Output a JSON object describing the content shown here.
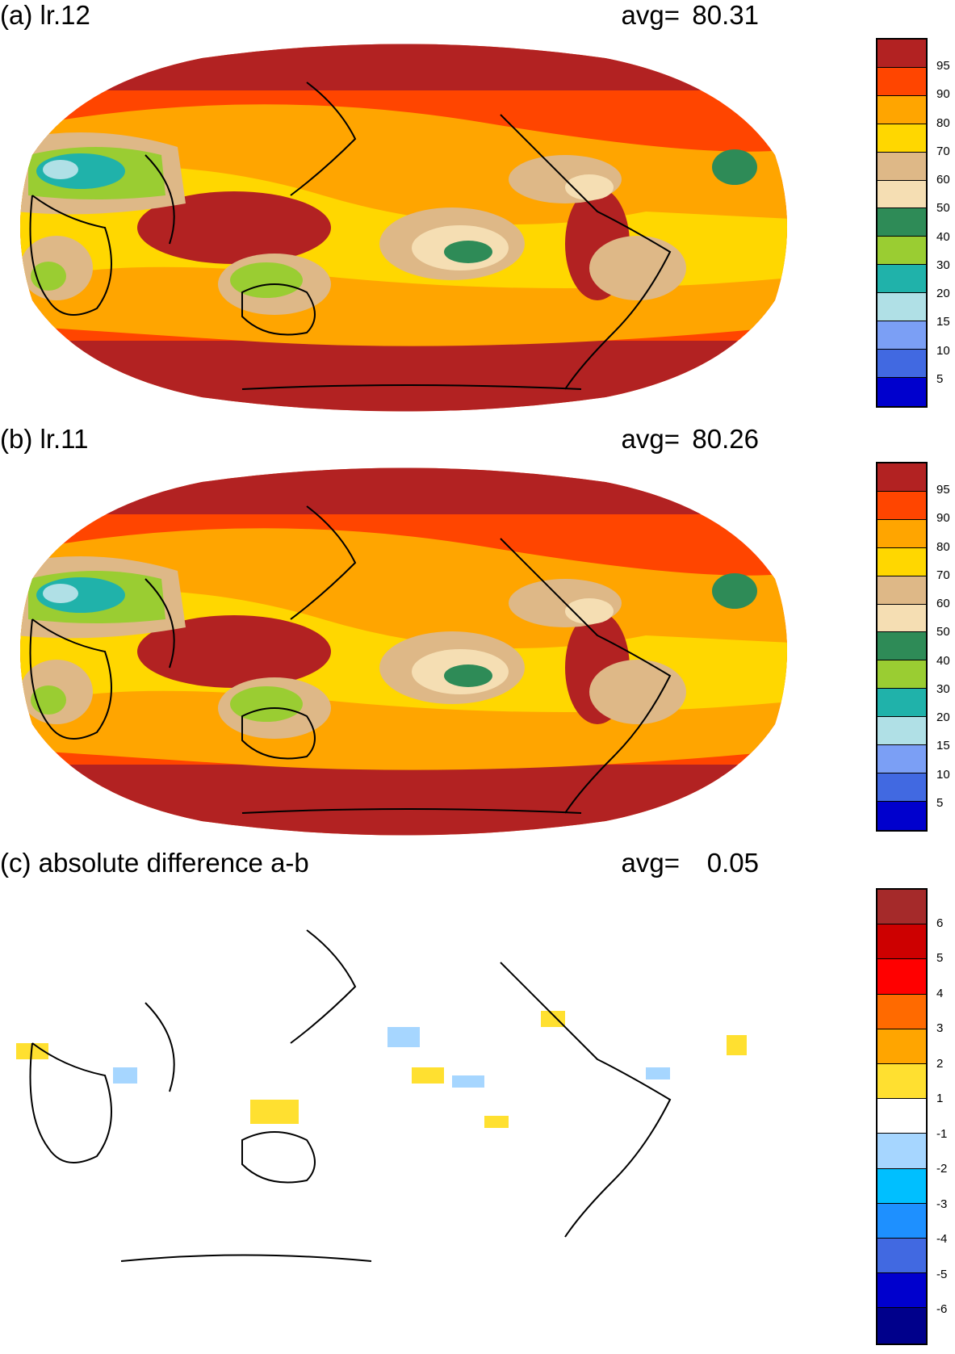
{
  "panels": [
    {
      "id": "a",
      "title": "(a) lr.12",
      "avg_label": "avg=",
      "avg_value": "80.31",
      "field": "cloud"
    },
    {
      "id": "b",
      "title": "(b) lr.11",
      "avg_label": "avg=",
      "avg_value": "80.26",
      "field": "cloud"
    },
    {
      "id": "c",
      "title": "(c) absolute difference a-b",
      "avg_label": "avg=",
      "avg_value": "0.05",
      "field": "difference"
    }
  ],
  "colorbars": {
    "cloud": {
      "colors": [
        "#b22222",
        "#ff4500",
        "#ffa500",
        "#ffd700",
        "#deb887",
        "#f5deb3",
        "#2e8b57",
        "#9acd32",
        "#20b2aa",
        "#b0e0e6",
        "#7b9ff5",
        "#4169e1",
        "#0000cd"
      ],
      "tick_labels": [
        "95",
        "90",
        "80",
        "70",
        "60",
        "50",
        "40",
        "30",
        "20",
        "15",
        "10",
        "5"
      ]
    },
    "difference": {
      "colors": [
        "#a52a2a",
        "#cd0000",
        "#ff0000",
        "#ff6a00",
        "#ffa500",
        "#ffe030",
        "#ffffff",
        "#a6d6ff",
        "#00bfff",
        "#1e90ff",
        "#4169e1",
        "#0000cd",
        "#00008b"
      ],
      "tick_labels": [
        "6",
        "5",
        "4",
        "3",
        "2",
        "1",
        "-1",
        "-2",
        "-3",
        "-4",
        "-5",
        "-6"
      ]
    }
  }
}
